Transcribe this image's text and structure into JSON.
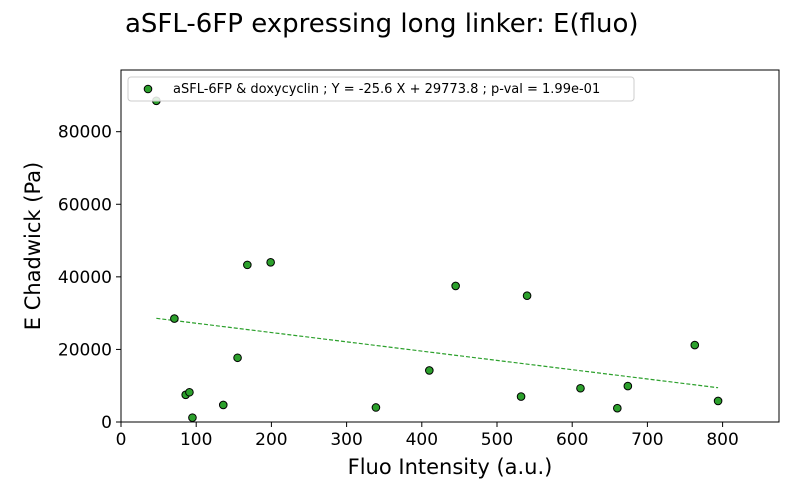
{
  "chart_data": {
    "type": "scatter",
    "title": "aSFL-6FP expressing long linker: E(fluo)",
    "xlabel": "Fluo Intensity (a.u.)",
    "ylabel": "E Chadwick (Pa)",
    "xlim": [
      0,
      875
    ],
    "ylim": [
      0,
      97000
    ],
    "xticks": [
      0,
      100,
      200,
      300,
      400,
      500,
      600,
      700,
      800
    ],
    "yticks": [
      0,
      20000,
      40000,
      60000,
      80000
    ],
    "grid": false,
    "legend_position": "top-left",
    "series": [
      {
        "name": "aSFL-6FP & doxycyclin ; Y = -25.6 X + 29773.8 ; p-val = 1.99e-01",
        "marker_color": "#2ca02c",
        "points": [
          {
            "x": 47,
            "y": 88500
          },
          {
            "x": 71,
            "y": 28500
          },
          {
            "x": 86,
            "y": 7500
          },
          {
            "x": 91,
            "y": 8200
          },
          {
            "x": 95,
            "y": 1200
          },
          {
            "x": 136,
            "y": 4700
          },
          {
            "x": 155,
            "y": 17700
          },
          {
            "x": 168,
            "y": 43300
          },
          {
            "x": 199,
            "y": 44000
          },
          {
            "x": 339,
            "y": 4000
          },
          {
            "x": 410,
            "y": 14200
          },
          {
            "x": 445,
            "y": 37500
          },
          {
            "x": 532,
            "y": 7000
          },
          {
            "x": 540,
            "y": 34800
          },
          {
            "x": 611,
            "y": 9300
          },
          {
            "x": 660,
            "y": 3800
          },
          {
            "x": 674,
            "y": 9900
          },
          {
            "x": 763,
            "y": 21200
          },
          {
            "x": 794,
            "y": 5800
          }
        ]
      }
    ],
    "fit_line": {
      "slope": -25.6,
      "intercept": 29773.8,
      "x_range": [
        47,
        794
      ],
      "color": "#2ca02c",
      "style": "dashed"
    }
  }
}
